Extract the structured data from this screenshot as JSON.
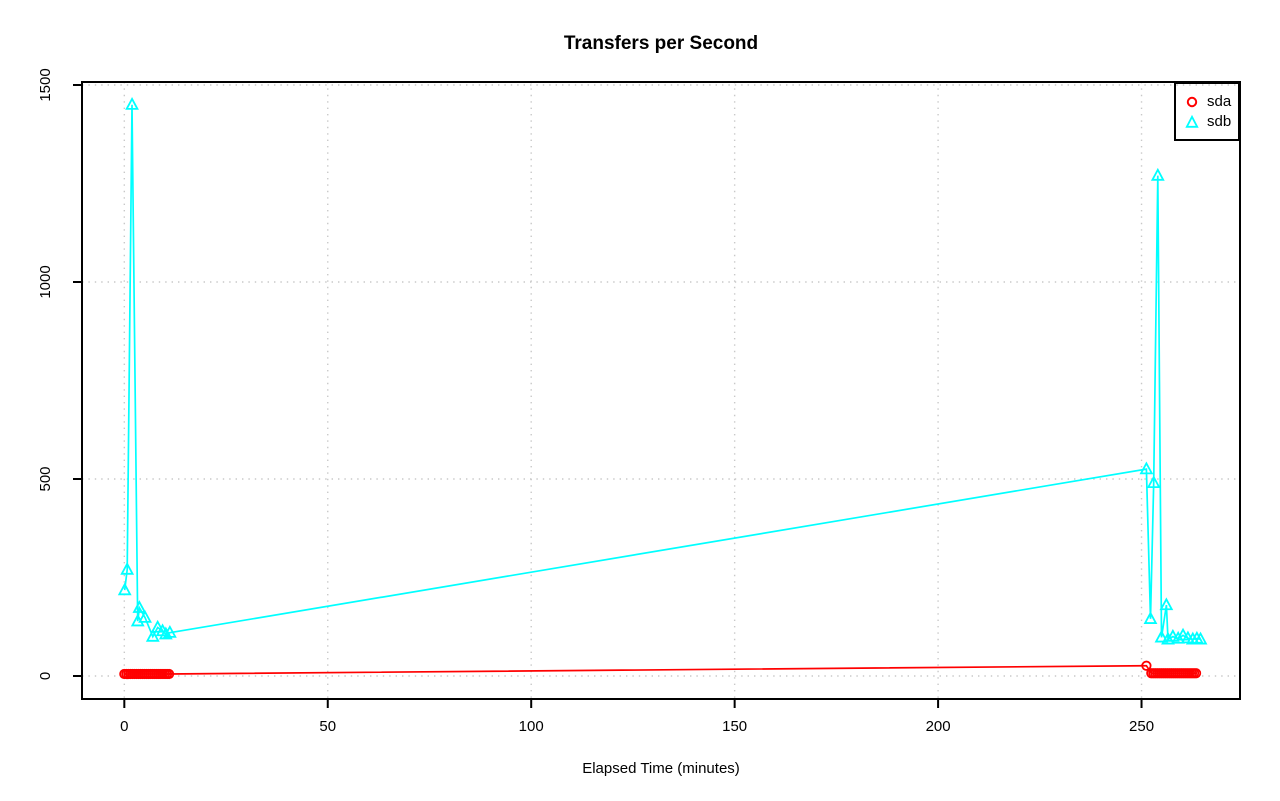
{
  "window": {
    "background_color": "#ffffff"
  },
  "chart_data": {
    "type": "line",
    "title": "Transfers per Second",
    "xlabel": "Elapsed Time (minutes)",
    "ylabel": "",
    "x_ticks": [
      0,
      50,
      100,
      150,
      200,
      250
    ],
    "y_ticks": [
      0,
      500,
      1000,
      1500
    ],
    "xlim": [
      -10.4,
      274.2
    ],
    "ylim": [
      -58.4,
      1507.6
    ],
    "grid": {
      "visible": true,
      "style": "dotted",
      "color": "#c8c8c8"
    },
    "axis_color": "#000000",
    "legend_position": "top-right",
    "series": [
      {
        "name": "sda",
        "color": "#ff0000",
        "marker": "circle",
        "points": [
          [
            0,
            5
          ],
          [
            0.5,
            5
          ],
          [
            1,
            5
          ],
          [
            1.5,
            5
          ],
          [
            2,
            5
          ],
          [
            2.5,
            5
          ],
          [
            3,
            5
          ],
          [
            3.5,
            5
          ],
          [
            4,
            5
          ],
          [
            4.5,
            5
          ],
          [
            5,
            5
          ],
          [
            5.5,
            5
          ],
          [
            6,
            5
          ],
          [
            6.5,
            5
          ],
          [
            7,
            5
          ],
          [
            7.5,
            5
          ],
          [
            8,
            5
          ],
          [
            8.5,
            5
          ],
          [
            9,
            5
          ],
          [
            9.5,
            5
          ],
          [
            10,
            5
          ],
          [
            10.5,
            5
          ],
          [
            11,
            5
          ],
          [
            251.2,
            26
          ],
          [
            252.4,
            7
          ],
          [
            252.9,
            7
          ],
          [
            253.4,
            7
          ],
          [
            253.9,
            7
          ],
          [
            254.4,
            7
          ],
          [
            254.9,
            7
          ],
          [
            255.4,
            7
          ],
          [
            255.9,
            7
          ],
          [
            256.4,
            7
          ],
          [
            256.9,
            7
          ],
          [
            257.4,
            7
          ],
          [
            257.9,
            7
          ],
          [
            258.4,
            7
          ],
          [
            258.9,
            7
          ],
          [
            259.4,
            7
          ],
          [
            259.9,
            7
          ],
          [
            260.4,
            7
          ],
          [
            260.9,
            7
          ],
          [
            261.4,
            7
          ],
          [
            261.9,
            7
          ],
          [
            262.4,
            7
          ],
          [
            262.9,
            7
          ],
          [
            263.4,
            7
          ]
        ]
      },
      {
        "name": "sdb",
        "color": "#00ffff",
        "marker": "triangle",
        "points": [
          [
            0.1,
            218
          ],
          [
            0.7,
            270
          ],
          [
            1.9,
            1450
          ],
          [
            3.3,
            139
          ],
          [
            3.7,
            173
          ],
          [
            5.1,
            148
          ],
          [
            7,
            100
          ],
          [
            8.2,
            123
          ],
          [
            9.4,
            114
          ],
          [
            10.2,
            106
          ],
          [
            11.2,
            110
          ],
          [
            251.2,
            525
          ],
          [
            252.2,
            145
          ],
          [
            253,
            490
          ],
          [
            254,
            1270
          ],
          [
            254.9,
            98
          ],
          [
            256.1,
            180
          ],
          [
            256.5,
            93
          ],
          [
            257.7,
            100
          ],
          [
            259,
            95
          ],
          [
            260.2,
            103
          ],
          [
            261.4,
            96
          ],
          [
            262.6,
            93
          ],
          [
            263.6,
            95
          ],
          [
            264.5,
            93
          ]
        ]
      }
    ]
  }
}
